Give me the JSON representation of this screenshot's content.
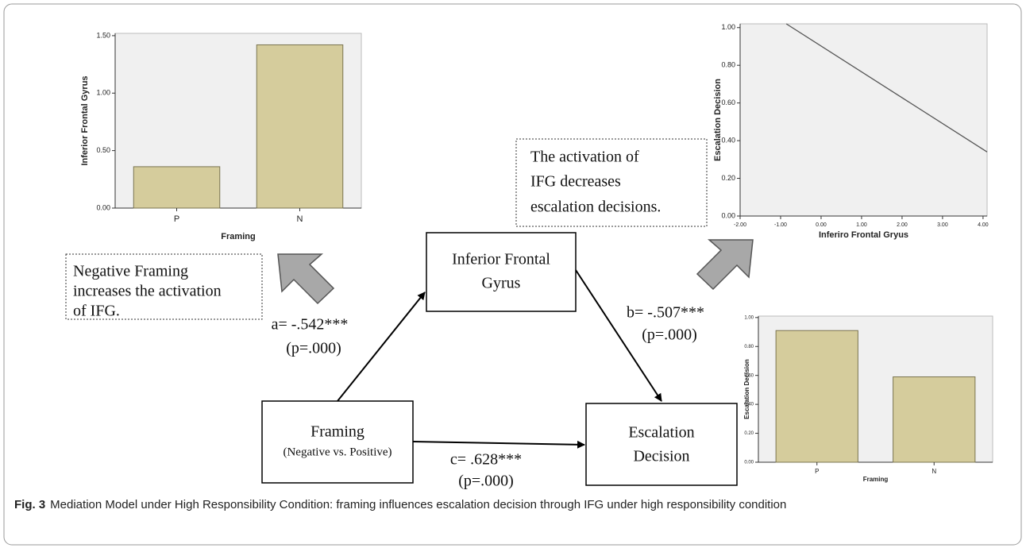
{
  "chart_data": [
    {
      "type": "bar",
      "ylabel": "Inferior Frontal Gyrus",
      "xlabel": "Framing",
      "categories": [
        "P",
        "N"
      ],
      "values": [
        0.36,
        1.42
      ],
      "color": "#d5cc9c",
      "ylim": [
        0,
        1.52
      ],
      "yticks": [
        {
          "value": 0,
          "label": "0.00"
        },
        {
          "value": 0.5,
          "label": "0.50"
        },
        {
          "value": 1,
          "label": "1.00"
        },
        {
          "value": 1.5,
          "label": "1.50"
        }
      ]
    },
    {
      "type": "line",
      "ylabel": "Escalation Decision",
      "xlabel": "Inferiro Frontal Gryus",
      "x": [
        -0.86,
        4.1
      ],
      "values": [
        1.02,
        0.34
      ],
      "color": "#555555",
      "xlim": [
        -2,
        4.1
      ],
      "ylim": [
        0,
        1.02
      ],
      "xticks": [
        {
          "value": -2,
          "label": "-2.00"
        },
        {
          "value": -1,
          "label": "-1.00"
        },
        {
          "value": 0,
          "label": "0.00"
        },
        {
          "value": 1,
          "label": "1.00"
        },
        {
          "value": 2,
          "label": "2.00"
        },
        {
          "value": 3,
          "label": "3.00"
        },
        {
          "value": 4,
          "label": "4.00"
        }
      ],
      "yticks": [
        {
          "value": 0,
          "label": "0.00"
        },
        {
          "value": 0.2,
          "label": "0.20"
        },
        {
          "value": 0.4,
          "label": "0.40"
        },
        {
          "value": 0.6,
          "label": "0.60"
        },
        {
          "value": 0.8,
          "label": "0.80"
        },
        {
          "value": 1,
          "label": "1.00"
        }
      ]
    },
    {
      "type": "bar",
      "ylabel": "Escalation Decision",
      "xlabel": "Framing",
      "categories": [
        "P",
        "N"
      ],
      "values": [
        0.91,
        0.59
      ],
      "color": "#d5cc9c",
      "ylim": [
        0,
        1.01
      ],
      "yticks": [
        {
          "value": 0,
          "label": "0.00"
        },
        {
          "value": 0.2,
          "label": "0.20"
        },
        {
          "value": 0.4,
          "label": "0.40"
        },
        {
          "value": 0.6,
          "label": "0.60"
        },
        {
          "value": 0.8,
          "label": "0.80"
        },
        {
          "value": 1,
          "label": "1.00"
        }
      ]
    }
  ],
  "diagram": {
    "nodes": [
      {
        "lines": [
          "Inferior Frontal",
          "Gyrus"
        ]
      },
      {
        "lines": [
          "Framing",
          "(Negative vs. Positive)"
        ]
      },
      {
        "lines": [
          "Escalation",
          "Decision"
        ]
      }
    ],
    "edges": [
      {
        "lines": [
          "a= -.542***",
          "(p=.000)"
        ]
      },
      {
        "lines": [
          "b= -.507***",
          "(p=.000)"
        ]
      },
      {
        "lines": [
          "c= .628***",
          "(p=.000)"
        ]
      }
    ],
    "notes": [
      {
        "lines": [
          "Negative Framing",
          "increases the activation",
          "of IFG."
        ]
      },
      {
        "lines": [
          "The activation of",
          "IFG decreases",
          "escalation decisions."
        ]
      }
    ]
  },
  "caption": {
    "label": "Fig. 3",
    "text": "Mediation Model under High Responsibility Condition: framing influences escalation decision through IFG under high responsibility condition"
  }
}
